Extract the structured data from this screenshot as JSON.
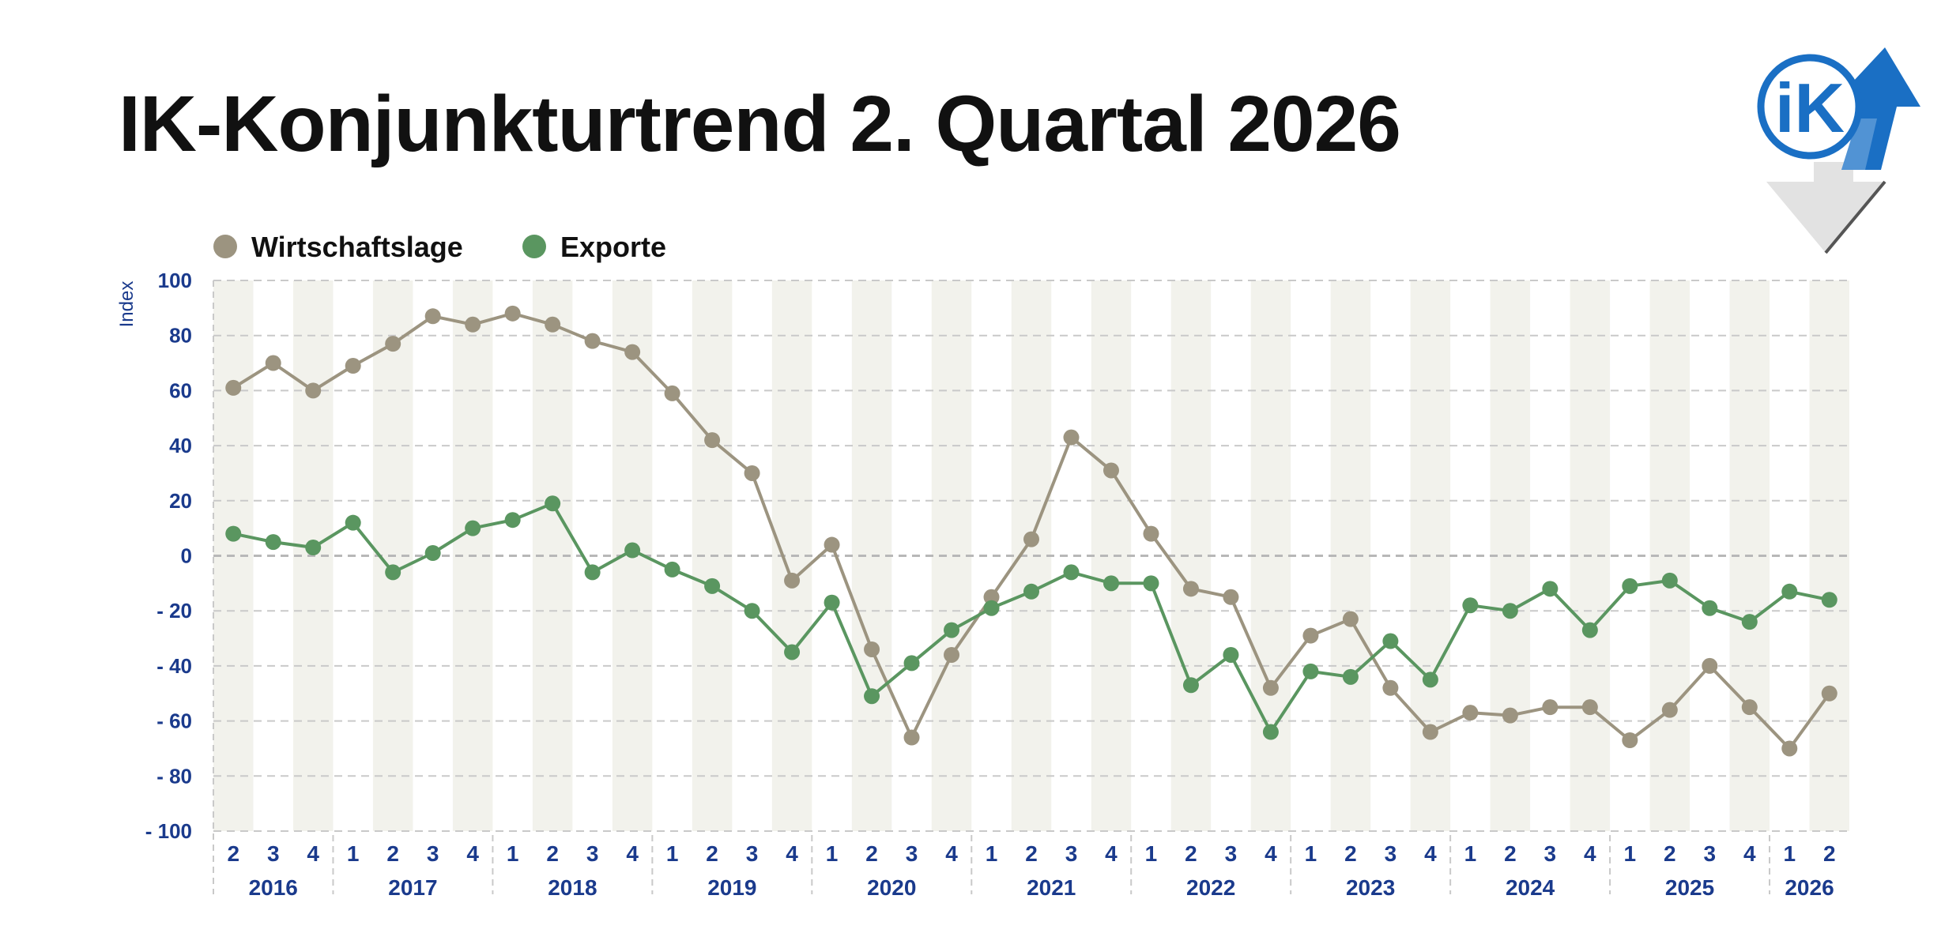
{
  "title": "IK-Konjunkturtrend 2. Quartal 2026",
  "logo": {
    "text": "iK"
  },
  "colors": {
    "wirtschaftslage": "#9c9480",
    "exporte": "#5a9660",
    "axis_text": "#1a3a8c",
    "band": "#f2f2ec",
    "logo_blue": "#1a6fc4",
    "logo_grey": "#e2e2e2"
  },
  "chart_data": {
    "type": "line",
    "title": "IK-Konjunkturtrend 2. Quartal 2026",
    "xlabel": "",
    "ylabel": "Index",
    "ylim": [
      -100,
      100
    ],
    "yticks": [
      100,
      80,
      60,
      40,
      20,
      0,
      -20,
      -40,
      -60,
      -80,
      -100
    ],
    "ytick_labels": [
      "100",
      "80",
      "60",
      "40",
      "20",
      "0",
      "- 20",
      "- 40",
      "- 60",
      "- 80",
      "- 100"
    ],
    "grid": true,
    "legend_position": "top-left",
    "quarters": [
      "2",
      "3",
      "4",
      "1",
      "2",
      "3",
      "4",
      "1",
      "2",
      "3",
      "4",
      "1",
      "2",
      "3",
      "4",
      "1",
      "2",
      "3",
      "4",
      "1",
      "2",
      "3",
      "4",
      "1",
      "2",
      "3",
      "4",
      "1",
      "2",
      "3",
      "4",
      "1",
      "2",
      "3",
      "4",
      "1",
      "2",
      "3",
      "4",
      "1",
      "2"
    ],
    "years": [
      {
        "label": "2016",
        "start": 0,
        "end": 2
      },
      {
        "label": "2017",
        "start": 3,
        "end": 6
      },
      {
        "label": "2018",
        "start": 7,
        "end": 10
      },
      {
        "label": "2019",
        "start": 11,
        "end": 14
      },
      {
        "label": "2020",
        "start": 15,
        "end": 18
      },
      {
        "label": "2021",
        "start": 19,
        "end": 22
      },
      {
        "label": "2022",
        "start": 23,
        "end": 26
      },
      {
        "label": "2023",
        "start": 27,
        "end": 30
      },
      {
        "label": "2024",
        "start": 31,
        "end": 34
      },
      {
        "label": "2025",
        "start": 35,
        "end": 38
      },
      {
        "label": "2026",
        "start": 39,
        "end": 40
      }
    ],
    "series": [
      {
        "name": "Wirtschaftslage",
        "color": "#9c9480",
        "values": [
          61,
          70,
          60,
          69,
          77,
          87,
          84,
          88,
          84,
          78,
          74,
          59,
          42,
          30,
          -9,
          4,
          -34,
          -66,
          -36,
          -15,
          6,
          43,
          31,
          8,
          -12,
          -15,
          -48,
          -29,
          -23,
          -48,
          -64,
          -57,
          -58,
          -55,
          -55,
          -67,
          -56,
          -40,
          -55,
          -70,
          -50
        ]
      },
      {
        "name": "Exporte",
        "color": "#5a9660",
        "values": [
          8,
          5,
          3,
          12,
          -6,
          1,
          10,
          13,
          19,
          -6,
          2,
          -5,
          -11,
          -20,
          -35,
          -17,
          -51,
          -39,
          -27,
          -19,
          -13,
          -6,
          -10,
          -10,
          -47,
          -36,
          -64,
          -42,
          -44,
          -31,
          -45,
          -18,
          -20,
          -12,
          -27,
          -11,
          -9,
          -19,
          -24,
          -13,
          -16
        ]
      }
    ]
  }
}
